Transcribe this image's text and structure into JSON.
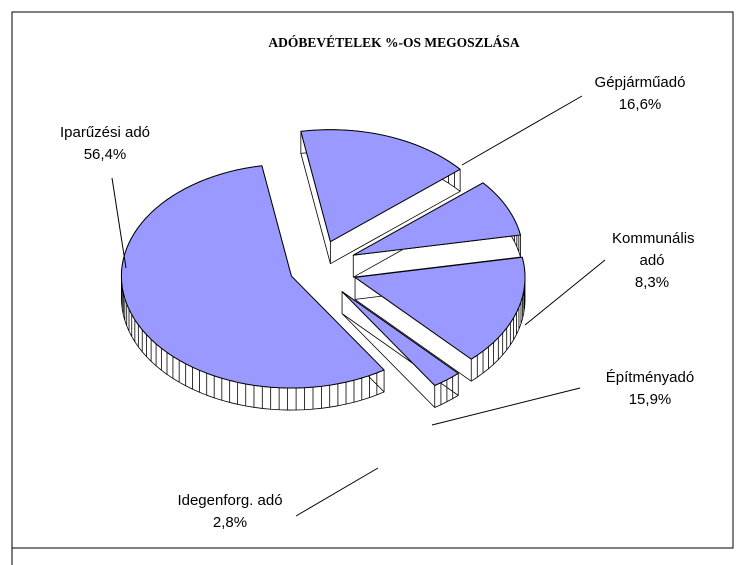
{
  "chart_data": {
    "type": "pie",
    "title": "ADÓBEVÉTELEK %-OS MEGOSZLÁSA",
    "categories": [
      "Gépjárműadó",
      "Kommunális adó",
      "Építményadó",
      "Idegenforg. adó",
      "Iparűzési adó"
    ],
    "values": [
      16.6,
      8.3,
      15.9,
      2.8,
      56.4
    ],
    "value_labels": [
      "16,6%",
      "8,3%",
      "15,9%",
      "2,8%",
      "56,4%"
    ],
    "color": "#9999ff"
  }
}
